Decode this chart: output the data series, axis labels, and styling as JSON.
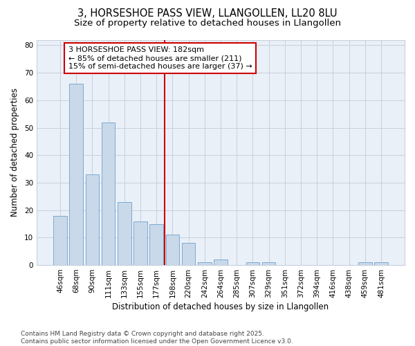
{
  "title_line1": "3, HORSESHOE PASS VIEW, LLANGOLLEN, LL20 8LU",
  "title_line2": "Size of property relative to detached houses in Llangollen",
  "xlabel": "Distribution of detached houses by size in Llangollen",
  "ylabel": "Number of detached properties",
  "categories": [
    "46sqm",
    "68sqm",
    "90sqm",
    "111sqm",
    "133sqm",
    "155sqm",
    "177sqm",
    "198sqm",
    "220sqm",
    "242sqm",
    "264sqm",
    "285sqm",
    "307sqm",
    "329sqm",
    "351sqm",
    "372sqm",
    "394sqm",
    "416sqm",
    "438sqm",
    "459sqm",
    "481sqm"
  ],
  "values": [
    18,
    66,
    33,
    52,
    23,
    16,
    15,
    11,
    8,
    1,
    2,
    0,
    1,
    1,
    0,
    0,
    0,
    0,
    0,
    1,
    1
  ],
  "bar_color": "#c9d9ea",
  "bar_edge_color": "#7baad0",
  "vline_color": "#cc0000",
  "vline_x_index": 6.5,
  "annotation_text": "3 HORSESHOE PASS VIEW: 182sqm\n← 85% of detached houses are smaller (211)\n15% of semi-detached houses are larger (37) →",
  "annotation_box_edge_color": "#cc0000",
  "ylim_max": 82,
  "yticks": [
    0,
    10,
    20,
    30,
    40,
    50,
    60,
    70,
    80
  ],
  "grid_color": "#c8d0dc",
  "plot_bg_color": "#eaf0f8",
  "fig_bg_color": "#ffffff",
  "footer_text": "Contains HM Land Registry data © Crown copyright and database right 2025.\nContains public sector information licensed under the Open Government Licence v3.0.",
  "title_fontsize": 10.5,
  "subtitle_fontsize": 9.5,
  "annotation_fontsize": 8,
  "xlabel_fontsize": 8.5,
  "ylabel_fontsize": 8.5,
  "tick_fontsize": 7.5,
  "footer_fontsize": 6.5
}
